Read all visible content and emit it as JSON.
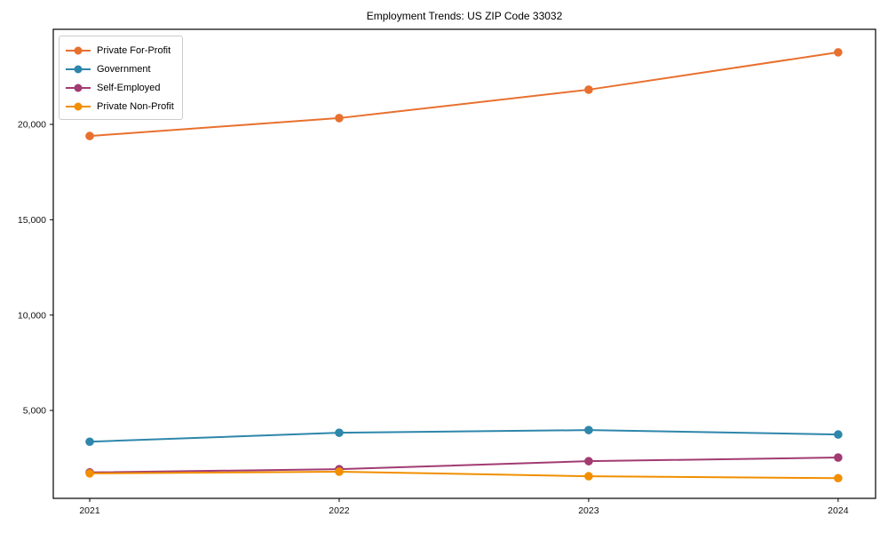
{
  "chart_data": {
    "type": "line",
    "title": "Employment Trends: US ZIP Code 33032",
    "x": [
      2021,
      2022,
      2023,
      2024
    ],
    "categories": [
      "2021",
      "2022",
      "2023",
      "2024"
    ],
    "series": [
      {
        "name": "Private For-Profit",
        "color": "#E8702E",
        "values": [
          19390,
          20330,
          21820,
          23780
        ]
      },
      {
        "name": "Government",
        "color": "#2E86AB",
        "values": [
          3360,
          3830,
          3970,
          3740
        ]
      },
      {
        "name": "Self-Employed",
        "color": "#A23B72",
        "values": [
          1750,
          1920,
          2340,
          2530
        ]
      },
      {
        "name": "Private Non-Profit",
        "color": "#F18F01",
        "values": [
          1700,
          1790,
          1550,
          1450
        ]
      }
    ],
    "xlabel": "",
    "ylabel": "",
    "xlim": [
      2020.854,
      2024.15
    ],
    "ylim": [
      390,
      24985
    ],
    "yticks": [
      5000,
      10000,
      15000,
      20000
    ],
    "ytick_labels": [
      "5,000",
      "10,000",
      "15,000",
      "20,000"
    ],
    "grid": false,
    "legend_position": "upper left",
    "frame_color": "#000000",
    "tick_color": "#111111",
    "background": "#ffffff"
  }
}
